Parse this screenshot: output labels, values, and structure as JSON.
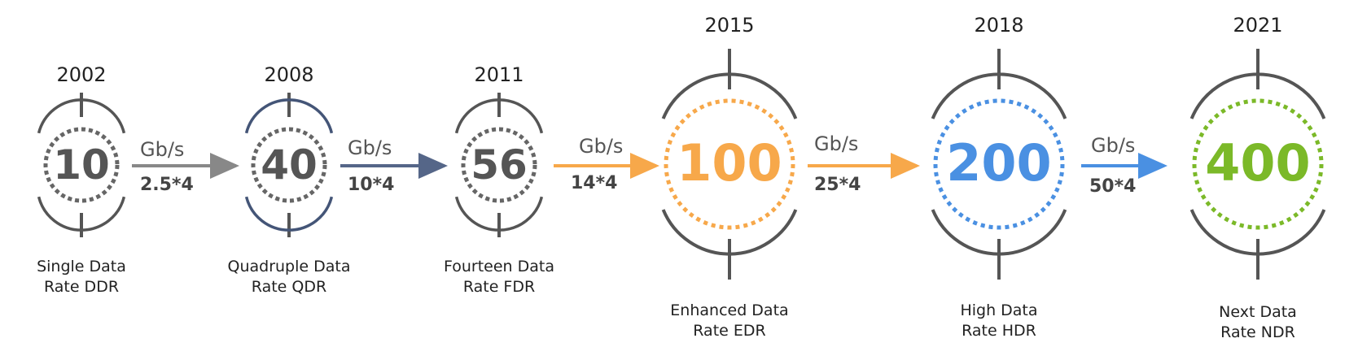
{
  "nodes": [
    {
      "year": "2002",
      "value": "10",
      "name_line1": "Single Data",
      "name_line2": "Rate DDR",
      "color": "#555555"
    },
    {
      "year": "2008",
      "value": "40",
      "name_line1": "Quadruple Data",
      "name_line2": "Rate QDR",
      "color": "#555555"
    },
    {
      "year": "2011",
      "value": "56",
      "name_line1": "Fourteen Data",
      "name_line2": "Rate FDR",
      "color": "#555555"
    },
    {
      "year": "2015",
      "value": "100",
      "name_line1": "Enhanced Data",
      "name_line2": "Rate EDR",
      "color": "#F7A84A"
    },
    {
      "year": "2018",
      "value": "200",
      "name_line1": "High Data",
      "name_line2": "Rate HDR",
      "color": "#4A90E2"
    },
    {
      "year": "2021",
      "value": "400",
      "name_line1": "Next Data",
      "name_line2": "Rate NDR",
      "color": "#7BB928"
    }
  ],
  "links": [
    {
      "unit": "Gb/s",
      "multiplier": "2.5*4",
      "color": "#888888"
    },
    {
      "unit": "Gb/s",
      "multiplier": "10*4",
      "color": "#556688"
    },
    {
      "unit": "Gb/s",
      "multiplier": "14*4",
      "color": "#F7A84A"
    },
    {
      "unit": "Gb/s",
      "multiplier": "25*4",
      "color": "#F7A84A"
    },
    {
      "unit": "Gb/s",
      "multiplier": "50*4",
      "color": "#4A90E2"
    }
  ],
  "ring_color": "#555555"
}
